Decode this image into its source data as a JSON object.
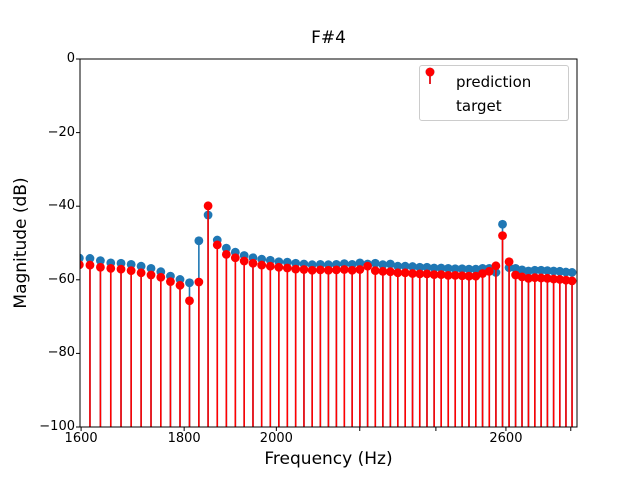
{
  "chart_data": {
    "type": "stem",
    "title": "F#4",
    "xlabel": "Frequency (Hz)",
    "ylabel": "Magnitude (dB)",
    "x_scale": "log",
    "xlim": [
      1598,
      2820
    ],
    "ylim": [
      -100,
      0
    ],
    "stem_baseline": -100,
    "grid": false,
    "legend_position": "upper right",
    "xticks_labeled": [
      1600,
      1800,
      2000,
      2600
    ],
    "xticks_unlabeled": [
      2200,
      2400,
      2800
    ],
    "yticks": [
      0,
      -20,
      -40,
      -60,
      -80,
      -100
    ],
    "frequencies_hz": [
      1596.8,
      1616.3,
      1635.7,
      1655.2,
      1674.7,
      1694.2,
      1713.6,
      1733.1,
      1752.6,
      1772.0,
      1791.5,
      1811.0,
      1830.5,
      1849.9,
      1869.4,
      1888.9,
      1908.4,
      1927.8,
      1947.3,
      1966.8,
      1986.2,
      2005.7,
      2025.2,
      2044.7,
      2064.1,
      2083.6,
      2103.1,
      2122.6,
      2142.0,
      2161.5,
      2181.0,
      2200.4,
      2219.9,
      2239.4,
      2258.9,
      2278.3,
      2297.8,
      2317.3,
      2336.8,
      2356.2,
      2375.7,
      2395.2,
      2414.6,
      2434.1,
      2453.6,
      2473.1,
      2492.5,
      2512.0,
      2531.5,
      2551.0,
      2570.4,
      2589.9,
      2609.4,
      2628.9,
      2648.3,
      2667.8,
      2687.3,
      2706.7,
      2726.2,
      2745.7,
      2765.2,
      2784.6,
      2804.1
    ],
    "series": [
      {
        "name": "prediction",
        "color": "#1f77b4",
        "values_db": [
          -54.1,
          -54.2,
          -54.8,
          -55.4,
          -55.5,
          -55.8,
          -56.3,
          -56.9,
          -57.8,
          -59.0,
          -59.9,
          -60.8,
          -49.4,
          -42.4,
          -49.2,
          -51.4,
          -52.5,
          -53.4,
          -54.0,
          -54.4,
          -54.7,
          -55.1,
          -55.2,
          -55.5,
          -55.7,
          -55.9,
          -55.8,
          -55.9,
          -55.8,
          -55.6,
          -55.8,
          -55.4,
          -55.7,
          -55.5,
          -55.9,
          -55.7,
          -56.3,
          -56.3,
          -56.4,
          -56.6,
          -56.6,
          -56.8,
          -56.8,
          -56.9,
          -57.0,
          -57.0,
          -57.1,
          -57.1,
          -56.9,
          -56.9,
          -58.0,
          -44.9,
          -56.7,
          -56.9,
          -57.3,
          -57.6,
          -57.4,
          -57.4,
          -57.5,
          -57.6,
          -57.7,
          -57.9,
          -58.0
        ]
      },
      {
        "name": "target",
        "color": "#ff0000",
        "values_db": [
          -55.9,
          -56.0,
          -56.6,
          -56.9,
          -57.1,
          -57.5,
          -58.1,
          -58.7,
          -59.3,
          -60.5,
          -61.5,
          -65.7,
          -60.6,
          -39.9,
          -50.5,
          -53.1,
          -54.0,
          -54.9,
          -55.5,
          -56.0,
          -56.3,
          -56.6,
          -56.8,
          -57.1,
          -57.2,
          -57.4,
          -57.3,
          -57.4,
          -57.3,
          -57.2,
          -57.4,
          -57.2,
          -56.3,
          -57.5,
          -57.7,
          -57.8,
          -58.1,
          -58.1,
          -58.3,
          -58.4,
          -58.4,
          -58.6,
          -58.6,
          -58.8,
          -58.8,
          -58.9,
          -59.0,
          -59.0,
          -58.3,
          -57.7,
          -56.2,
          -48.0,
          -55.1,
          -58.7,
          -59.2,
          -59.6,
          -59.4,
          -59.5,
          -59.6,
          -59.8,
          -59.9,
          -60.1,
          -60.3
        ]
      }
    ]
  }
}
